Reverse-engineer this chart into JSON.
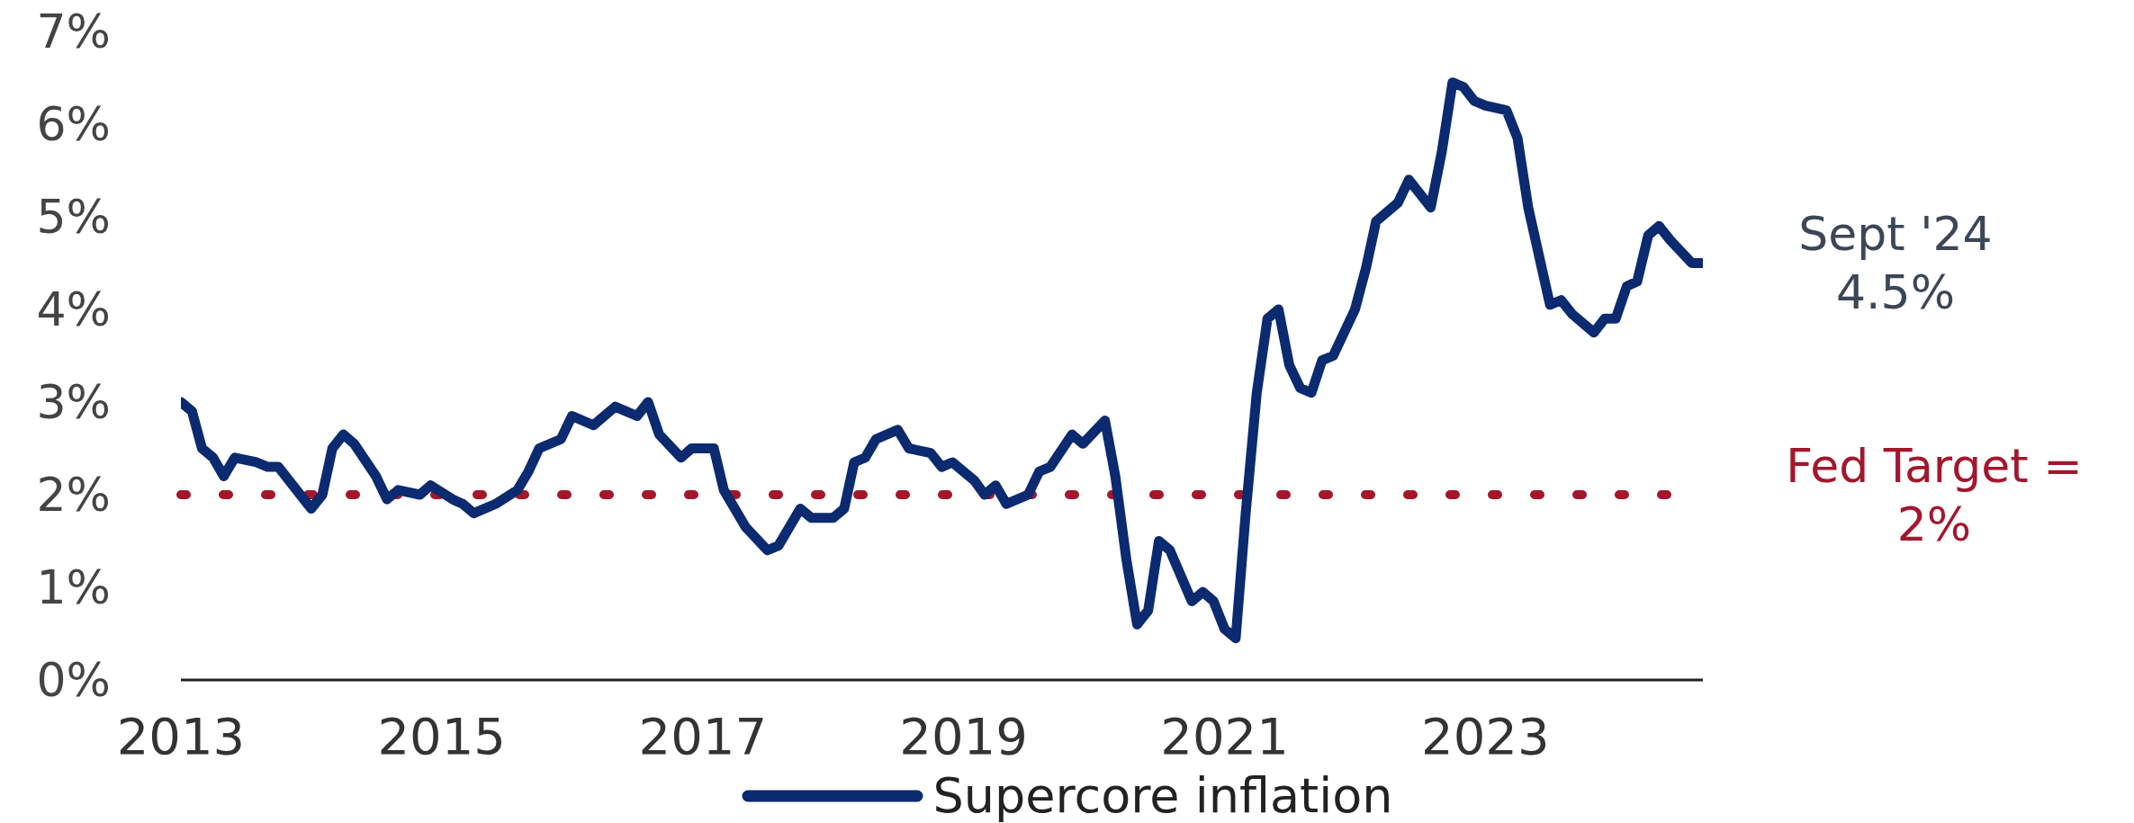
{
  "chart_data": {
    "type": "line",
    "x": [
      "2013-01",
      "2013-02",
      "2013-03",
      "2013-04",
      "2013-05",
      "2013-06",
      "2013-08",
      "2013-09",
      "2013-10",
      "2013-12",
      "2014-01",
      "2014-02",
      "2014-03",
      "2014-04",
      "2014-05",
      "2014-07",
      "2014-08",
      "2014-09",
      "2014-11",
      "2014-12",
      "2015-02",
      "2015-03",
      "2015-04",
      "2015-06",
      "2015-08",
      "2015-09",
      "2015-10",
      "2015-12",
      "2016-01",
      "2016-03",
      "2016-05",
      "2016-07",
      "2016-08",
      "2016-09",
      "2016-11",
      "2016-12",
      "2017-02",
      "2017-03",
      "2017-05",
      "2017-07",
      "2017-08",
      "2017-10",
      "2017-11",
      "2018-01",
      "2018-02",
      "2018-03",
      "2018-04",
      "2018-05",
      "2018-07",
      "2018-08",
      "2018-10",
      "2018-11",
      "2018-12",
      "2019-02",
      "2019-03",
      "2019-04",
      "2019-05",
      "2019-07",
      "2019-08",
      "2019-09",
      "2019-11",
      "2019-12",
      "2020-02",
      "2020-03",
      "2020-04",
      "2020-05",
      "2020-06",
      "2020-07",
      "2020-08",
      "2020-10",
      "2020-11",
      "2020-12",
      "2021-01",
      "2021-02",
      "2021-03",
      "2021-04",
      "2021-05",
      "2021-06",
      "2021-07",
      "2021-08",
      "2021-09",
      "2021-10",
      "2021-11",
      "2022-01",
      "2022-02",
      "2022-03",
      "2022-05",
      "2022-06",
      "2022-08",
      "2022-09",
      "2022-10",
      "2022-11",
      "2022-12",
      "2023-01",
      "2023-03",
      "2023-04",
      "2023-05",
      "2023-07",
      "2023-08",
      "2023-09",
      "2023-11",
      "2023-12",
      "2024-01",
      "2024-02",
      "2024-03",
      "2024-04",
      "2024-05",
      "2024-06",
      "2024-08",
      "2024-09"
    ],
    "series": [
      {
        "name": "Supercore inflation",
        "color": "#0b2a6f",
        "values": [
          3.0,
          2.9,
          2.5,
          2.4,
          2.2,
          2.4,
          2.35,
          2.3,
          2.3,
          2.0,
          1.85,
          2.0,
          2.5,
          2.65,
          2.55,
          2.2,
          1.95,
          2.05,
          2.0,
          2.1,
          1.95,
          1.9,
          1.8,
          1.9,
          2.05,
          2.25,
          2.5,
          2.6,
          2.85,
          2.75,
          2.95,
          2.85,
          3.0,
          2.65,
          2.4,
          2.5,
          2.5,
          2.05,
          1.65,
          1.4,
          1.45,
          1.85,
          1.75,
          1.75,
          1.85,
          2.35,
          2.4,
          2.6,
          2.7,
          2.5,
          2.45,
          2.3,
          2.35,
          2.15,
          2.0,
          2.1,
          1.9,
          2.0,
          2.25,
          2.3,
          2.65,
          2.55,
          2.8,
          2.2,
          1.3,
          0.6,
          0.75,
          1.5,
          1.4,
          0.85,
          0.95,
          0.85,
          0.55,
          0.45,
          1.8,
          3.1,
          3.9,
          4.0,
          3.4,
          3.15,
          3.1,
          3.45,
          3.5,
          4.0,
          4.45,
          4.95,
          5.15,
          5.4,
          5.1,
          5.7,
          6.45,
          6.4,
          6.25,
          6.2,
          6.15,
          5.85,
          5.1,
          4.05,
          4.1,
          3.95,
          3.75,
          3.9,
          3.9,
          4.25,
          4.3,
          4.8,
          4.9,
          4.75,
          4.5,
          4.5
        ]
      }
    ],
    "xlim": [
      "2013-01",
      "2024-09"
    ],
    "xticks": [
      "2013",
      "2015",
      "2017",
      "2019",
      "2021",
      "2023"
    ],
    "ylim": [
      0,
      7
    ],
    "yticks": [
      {
        "value": 0,
        "label": "0%"
      },
      {
        "value": 1,
        "label": "1%"
      },
      {
        "value": 2,
        "label": "2%"
      },
      {
        "value": 3,
        "label": "3%"
      },
      {
        "value": 4,
        "label": "4%"
      },
      {
        "value": 5,
        "label": "5%"
      },
      {
        "value": 6,
        "label": "6%"
      },
      {
        "value": 7,
        "label": "7%"
      }
    ],
    "ref_lines": [
      {
        "axis": "y",
        "value": 2,
        "label": "Fed Target =\n2%",
        "color": "#a3172c",
        "line_style": "dotted"
      }
    ],
    "annotations": [
      {
        "text": "Sept '24\n4.5%",
        "x": "2024-09",
        "y": 4.5
      }
    ],
    "legend": "bottom",
    "line_style": "solid"
  }
}
